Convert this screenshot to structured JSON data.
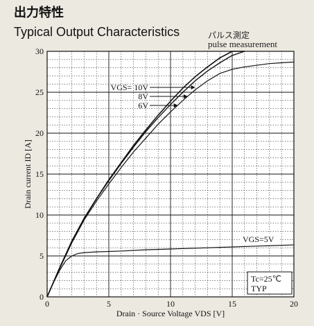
{
  "header": {
    "title_jp": "出力特性",
    "title_en": "Typical Output Characteristics",
    "note_jp": "パルス測定",
    "note_en": "pulse measurement"
  },
  "chart_data": {
    "type": "line",
    "title": "Typical Output Characteristics",
    "xlabel": "Drain · Source Voltage VDS [V]",
    "ylabel": "Drain current ID [A]",
    "xlim": [
      0,
      20
    ],
    "ylim": [
      0,
      30
    ],
    "x_ticks": [
      0,
      5,
      10,
      15,
      20
    ],
    "y_ticks": [
      0,
      5,
      10,
      15,
      20,
      25,
      30
    ],
    "grid": true,
    "series": [
      {
        "name": "VGS= 10V",
        "x": [
          0,
          1,
          2,
          3,
          4,
          5,
          6,
          7,
          8,
          9,
          10,
          11,
          12,
          13,
          14,
          15,
          16
        ],
        "y": [
          0,
          3.5,
          6.8,
          9.6,
          12.0,
          14.3,
          16.4,
          18.5,
          20.4,
          22.2,
          23.9,
          25.5,
          26.9,
          28.1,
          29.2,
          30.0,
          30.4
        ]
      },
      {
        "name": "8V",
        "x": [
          0,
          1,
          2,
          3,
          4,
          5,
          6,
          7,
          8,
          9,
          10,
          11,
          12,
          13,
          14,
          15,
          16
        ],
        "y": [
          0,
          3.5,
          6.8,
          9.6,
          12.0,
          14.2,
          16.3,
          18.3,
          20.2,
          21.9,
          23.5,
          25.0,
          26.4,
          27.6,
          28.6,
          29.5,
          30.1
        ]
      },
      {
        "name": "6V",
        "x": [
          0,
          1,
          2,
          3,
          4,
          5,
          6,
          7,
          8,
          9,
          10,
          11,
          12,
          13,
          14,
          15,
          16,
          17,
          18,
          19,
          20
        ],
        "y": [
          0,
          3.4,
          6.6,
          9.4,
          11.7,
          13.8,
          15.8,
          17.7,
          19.4,
          21.1,
          22.6,
          24.0,
          25.3,
          26.4,
          27.3,
          27.8,
          28.1,
          28.3,
          28.5,
          28.6,
          28.7
        ]
      },
      {
        "name": "VGS=5V",
        "x": [
          0,
          0.5,
          1,
          1.5,
          2,
          2.5,
          3,
          4,
          6,
          8,
          10,
          12,
          14,
          16,
          18,
          20
        ],
        "y": [
          0,
          1.7,
          3.2,
          4.4,
          5.0,
          5.3,
          5.4,
          5.5,
          5.6,
          5.75,
          5.85,
          5.95,
          6.05,
          6.15,
          6.25,
          6.35
        ]
      }
    ],
    "annotations": [
      "Tc=25℃",
      "TYP"
    ]
  },
  "labels": {
    "vgs10": "VGS= 10V",
    "vgs8": "8V",
    "vgs6": "6V",
    "vgs5": "VGS=5V",
    "tc": "Tc=25℃",
    "typ": "TYP"
  }
}
